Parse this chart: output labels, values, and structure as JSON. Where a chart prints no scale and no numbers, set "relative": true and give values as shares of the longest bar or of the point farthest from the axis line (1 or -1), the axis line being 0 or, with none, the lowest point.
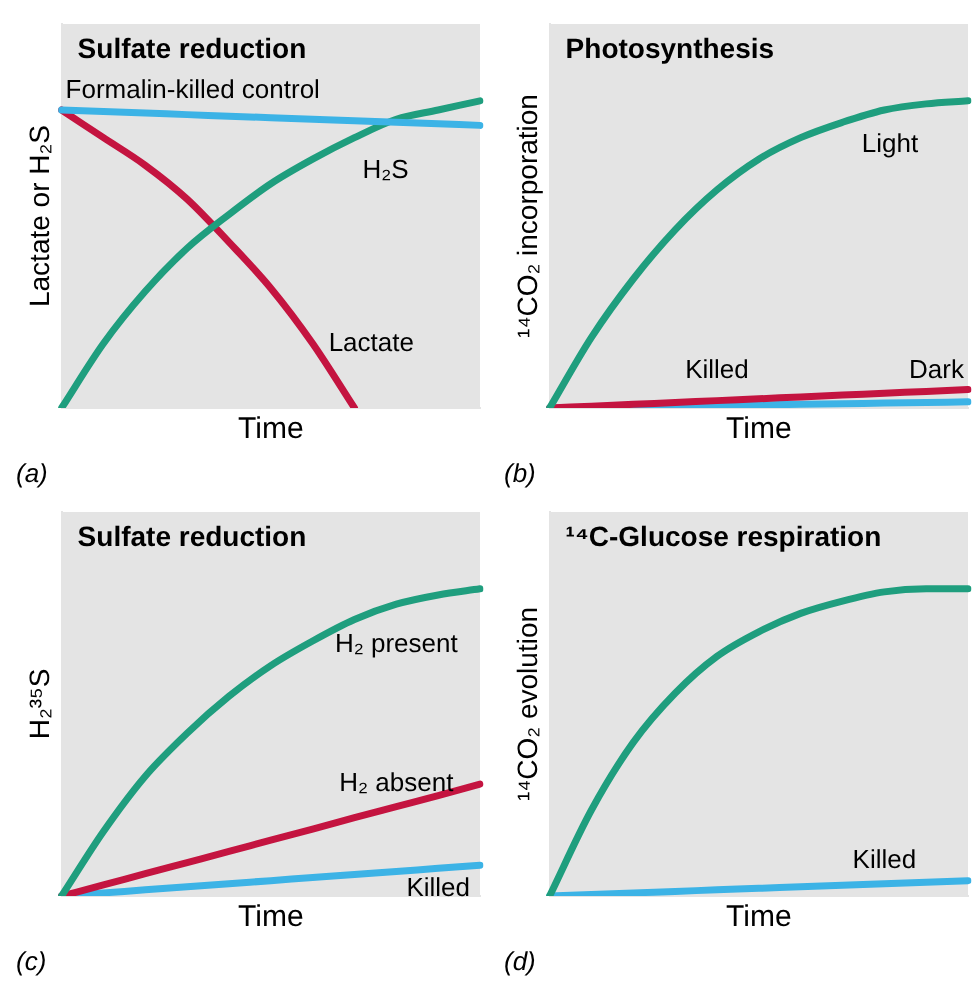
{
  "chart_data": [
    {
      "type": "line",
      "title": "Sulfate reduction",
      "xlabel": "Time",
      "ylabel": "Lactate or H₂S",
      "relative": true,
      "tick_labels": false,
      "annotations": [
        "(a)"
      ],
      "categories": [
        null,
        null,
        null,
        null,
        null,
        null,
        null,
        null,
        null,
        null,
        null
      ],
      "series": [
        {
          "name": "Formalin-killed control",
          "color": "#3cb3e6",
          "values": [
            0.97,
            0.965,
            0.96,
            0.955,
            0.95,
            0.945,
            0.94,
            0.935,
            0.93,
            0.925,
            0.92
          ]
        },
        {
          "name": "H₂S",
          "color": "#1f9e7e",
          "values": [
            0,
            0.21,
            0.38,
            0.52,
            0.63,
            0.73,
            0.81,
            0.88,
            0.94,
            0.97,
            1
          ]
        },
        {
          "name": "Lactate",
          "color": "#c41440",
          "values": [
            0.97,
            0.88,
            0.79,
            0.68,
            0.54,
            0.39,
            0.21,
            0,
            null,
            null,
            null
          ]
        }
      ]
    },
    {
      "type": "line",
      "title": "Photosynthesis",
      "xlabel": "Time",
      "ylabel": "¹⁴CO₂ incorporation",
      "relative": true,
      "tick_labels": false,
      "annotations": [
        "(b)"
      ],
      "categories": [
        null,
        null,
        null,
        null,
        null,
        null,
        null,
        null,
        null,
        null,
        null
      ],
      "series": [
        {
          "name": "Light",
          "color": "#1f9e7e",
          "values": [
            0,
            0.23,
            0.42,
            0.58,
            0.71,
            0.81,
            0.88,
            0.93,
            0.97,
            0.99,
            1
          ]
        },
        {
          "name": "Dark",
          "color": "#c41440",
          "values": [
            0,
            0.006,
            0.012,
            0.018,
            0.024,
            0.03,
            0.036,
            0.042,
            0.048,
            0.054,
            0.06
          ]
        },
        {
          "name": "Killed",
          "color": "#3cb3e6",
          "values": [
            0,
            null,
            0.004,
            0.006,
            0.008,
            0.01,
            0.012,
            0.014,
            0.016,
            0.018,
            0.02
          ]
        }
      ]
    },
    {
      "type": "line",
      "title": "Sulfate reduction",
      "xlabel": "Time",
      "ylabel": "H₂³⁵S",
      "relative": true,
      "tick_labels": false,
      "annotations": [
        "(c)"
      ],
      "categories": [
        null,
        null,
        null,
        null,
        null,
        null,
        null,
        null,
        null,
        null,
        null
      ],
      "series": [
        {
          "name": "H₂ present",
          "color": "#1f9e7e",
          "values": [
            0,
            0.21,
            0.39,
            0.53,
            0.65,
            0.75,
            0.83,
            0.9,
            0.95,
            0.98,
            1
          ]
        },
        {
          "name": "H₂ absent",
          "color": "#c41440",
          "values": [
            0,
            0.036,
            0.073,
            0.109,
            0.145,
            0.182,
            0.218,
            0.255,
            0.291,
            0.327,
            0.364
          ]
        },
        {
          "name": "Killed",
          "color": "#3cb3e6",
          "values": [
            0,
            0.01,
            0.02,
            0.03,
            0.04,
            0.05,
            0.06,
            0.07,
            0.08,
            0.09,
            0.1
          ]
        }
      ]
    },
    {
      "type": "line",
      "title": "¹⁴C-Glucose respiration",
      "xlabel": "Time",
      "ylabel": "¹⁴CO₂ evolution",
      "relative": true,
      "tick_labels": false,
      "annotations": [
        "(d)"
      ],
      "categories": [
        null,
        null,
        null,
        null,
        null,
        null,
        null,
        null,
        null,
        null,
        null
      ],
      "series": [
        {
          "color": "#1f9e7e",
          "values": [
            0,
            0.28,
            0.5,
            0.66,
            0.78,
            0.86,
            0.92,
            0.96,
            0.99,
            1,
            1
          ]
        },
        {
          "name": "Killed",
          "color": "#3cb3e6",
          "values": [
            0,
            0.005,
            0.01,
            0.015,
            0.02,
            0.025,
            0.03,
            0.035,
            0.04,
            0.045,
            0.05
          ]
        }
      ]
    }
  ]
}
